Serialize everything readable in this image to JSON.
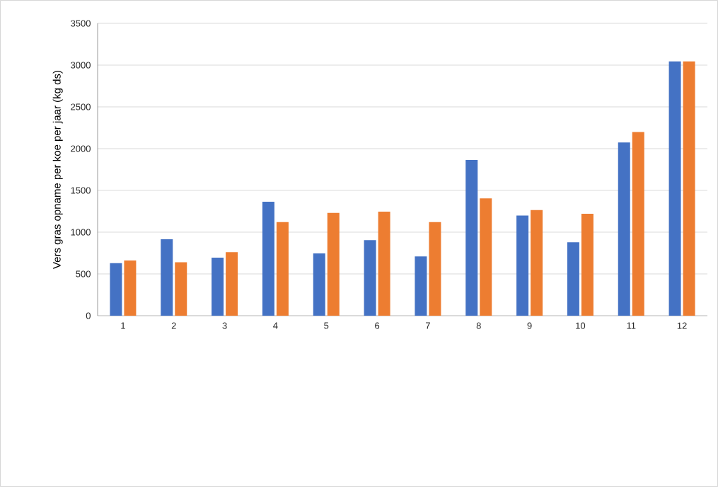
{
  "chart_data": {
    "type": "bar",
    "ylabel": "Vers gras opname per koe per jaar (kg ds)",
    "categories": [
      "1",
      "2",
      "3",
      "4",
      "5",
      "6",
      "7",
      "8",
      "9",
      "10",
      "11",
      "12"
    ],
    "series": [
      {
        "color": "#4472c4",
        "values": [
          630,
          915,
          695,
          1365,
          745,
          905,
          710,
          1865,
          1200,
          880,
          2075,
          3045
        ]
      },
      {
        "color": "#ed7d31",
        "values": [
          660,
          640,
          760,
          1120,
          1230,
          1245,
          1120,
          1405,
          1265,
          1220,
          2200,
          3045
        ]
      }
    ],
    "ylim": [
      0,
      3500
    ],
    "yticks": [
      0,
      500,
      1000,
      1500,
      2000,
      2500,
      3000,
      3500
    ],
    "grid": "y",
    "legend": false
  }
}
